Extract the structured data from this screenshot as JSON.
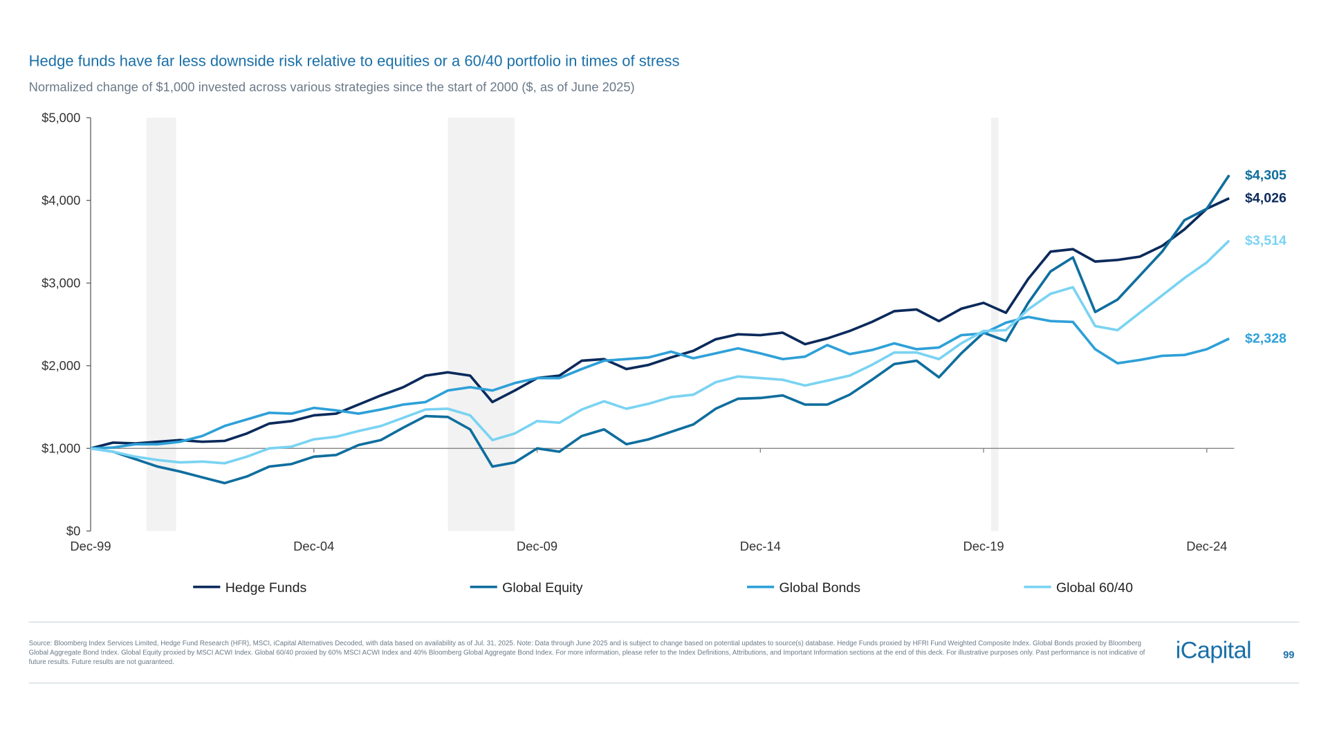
{
  "header": {
    "title": "Hedge funds have far less downside risk relative to equities or a 60/40 portfolio in times of stress",
    "subtitle": "Normalized change of $1,000 invested across various strategies since the start of 2000 ($, as of June 2025)"
  },
  "chart_data": {
    "type": "line",
    "x": [
      "Dec-99",
      "Jun-00",
      "Dec-00",
      "Jun-01",
      "Dec-01",
      "Jun-02",
      "Dec-02",
      "Jun-03",
      "Dec-03",
      "Jun-04",
      "Dec-04",
      "Jun-05",
      "Dec-05",
      "Jun-06",
      "Dec-06",
      "Jun-07",
      "Dec-07",
      "Jun-08",
      "Dec-08",
      "Jun-09",
      "Dec-09",
      "Jun-10",
      "Dec-10",
      "Jun-11",
      "Dec-11",
      "Jun-12",
      "Dec-12",
      "Jun-13",
      "Dec-13",
      "Jun-14",
      "Dec-14",
      "Jun-15",
      "Dec-15",
      "Jun-16",
      "Dec-16",
      "Jun-17",
      "Dec-17",
      "Jun-18",
      "Dec-18",
      "Jun-19",
      "Dec-19",
      "Jun-20",
      "Dec-20",
      "Jun-21",
      "Dec-21",
      "Jun-22",
      "Dec-22",
      "Jun-23",
      "Dec-23",
      "Jun-24",
      "Dec-24",
      "Jun-25"
    ],
    "xticks": [
      "Dec-99",
      "Dec-04",
      "Dec-09",
      "Dec-14",
      "Dec-19",
      "Dec-24"
    ],
    "xlim": [
      "Dec-99",
      "Jun-25"
    ],
    "ylim": [
      0,
      5000
    ],
    "yticks": [
      {
        "value": 0,
        "label": "$0"
      },
      {
        "value": 1000,
        "label": "$1,000"
      },
      {
        "value": 2000,
        "label": "$2,000"
      },
      {
        "value": 3000,
        "label": "$3,000"
      },
      {
        "value": 4000,
        "label": "$4,000"
      },
      {
        "value": 5000,
        "label": "$5,000"
      }
    ],
    "reference_line": 1000,
    "shaded_periods": [
      [
        "Mar-01",
        "Nov-01"
      ],
      [
        "Dec-07",
        "Jun-09"
      ],
      [
        "Feb-20",
        "Apr-20"
      ]
    ],
    "series": [
      {
        "name": "Hedge Funds",
        "color": "#0b2a5b",
        "end_label": "$4,026",
        "values": [
          1000,
          1070,
          1060,
          1080,
          1100,
          1080,
          1090,
          1180,
          1300,
          1330,
          1400,
          1420,
          1530,
          1640,
          1740,
          1880,
          1920,
          1880,
          1560,
          1700,
          1850,
          1880,
          2060,
          2080,
          1960,
          2010,
          2100,
          2180,
          2320,
          2380,
          2370,
          2400,
          2260,
          2330,
          2420,
          2530,
          2660,
          2680,
          2540,
          2690,
          2760,
          2640,
          3050,
          3380,
          3410,
          3260,
          3280,
          3320,
          3450,
          3650,
          3900,
          4026
        ]
      },
      {
        "name": "Global Equity",
        "color": "#0f6e9e",
        "end_label": "$4,305",
        "values": [
          1000,
          960,
          870,
          780,
          720,
          650,
          580,
          660,
          780,
          810,
          900,
          920,
          1040,
          1100,
          1250,
          1390,
          1380,
          1230,
          780,
          830,
          1000,
          960,
          1150,
          1230,
          1050,
          1110,
          1200,
          1290,
          1480,
          1600,
          1610,
          1640,
          1530,
          1530,
          1650,
          1830,
          2020,
          2060,
          1860,
          2150,
          2400,
          2300,
          2760,
          3140,
          3310,
          2650,
          2800,
          3090,
          3380,
          3760,
          3900,
          4305
        ]
      },
      {
        "name": "Global Bonds",
        "color": "#2ea0d8",
        "end_label": "$2,328",
        "values": [
          1000,
          1010,
          1050,
          1050,
          1080,
          1150,
          1270,
          1350,
          1430,
          1420,
          1490,
          1460,
          1420,
          1470,
          1530,
          1560,
          1700,
          1740,
          1700,
          1790,
          1850,
          1850,
          1960,
          2060,
          2080,
          2100,
          2170,
          2090,
          2150,
          2210,
          2150,
          2080,
          2110,
          2250,
          2140,
          2190,
          2270,
          2200,
          2220,
          2370,
          2390,
          2520,
          2590,
          2540,
          2530,
          2200,
          2030,
          2070,
          2120,
          2130,
          2200,
          2328
        ]
      },
      {
        "name": "Global 60/40",
        "color": "#7ad3f2",
        "end_label": "$3,514",
        "values": [
          1000,
          960,
          900,
          860,
          830,
          840,
          820,
          900,
          1000,
          1020,
          1110,
          1140,
          1210,
          1270,
          1370,
          1470,
          1480,
          1400,
          1100,
          1180,
          1330,
          1310,
          1470,
          1570,
          1480,
          1540,
          1620,
          1650,
          1800,
          1870,
          1850,
          1830,
          1760,
          1820,
          1880,
          2010,
          2160,
          2160,
          2080,
          2270,
          2420,
          2430,
          2680,
          2870,
          2950,
          2480,
          2430,
          2640,
          2850,
          3060,
          3250,
          3514
        ]
      }
    ]
  },
  "footer": {
    "source": "Source: Bloomberg Index Services Limited, Hedge Fund Research (HFR), MSCI, iCapital Alternatives Decoded, with data based on availability as of Jul. 31, 2025. Note: Data through June 2025 and is subject to change based on potential updates to source(s) database. Hedge Funds proxied by HFRI Fund Weighted Composite Index. Global Bonds proxied by Bloomberg Global Aggregate Bond Index. Global Equity proxied by MSCI ACWI Index. Global 60/40 proxied by 60% MSCI ACWI Index and 40% Bloomberg Global Aggregate Bond Index. For more information, please refer to the Index Definitions, Attributions, and Important Information sections at the end of this deck. For illustrative purposes only. Past performance is not indicative of future results. Future results are not guaranteed.",
    "logo": "iCapital",
    "page_number": "99"
  }
}
